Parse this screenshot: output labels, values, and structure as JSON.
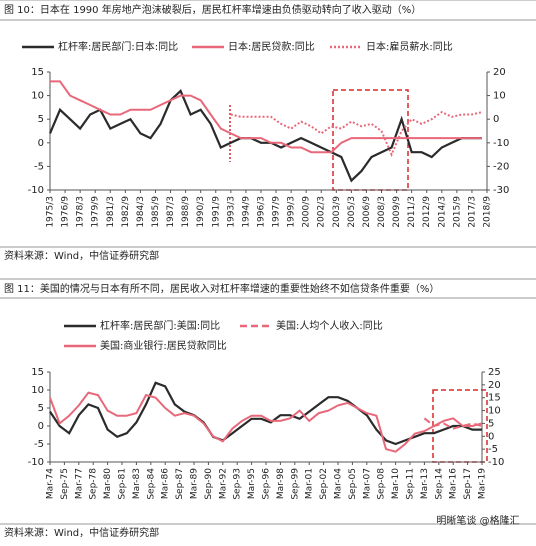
{
  "charts": [
    {
      "chart_data": {
        "type": "line",
        "title": "图 10：日本在 1990 年房地产泡沫破裂后，居民杠杆率增速由负债驱动转向了收入驱动（%）",
        "source": "资料来源：Wind，中信证券研究部",
        "x": [
          1975.25,
          1976.25,
          1977.25,
          1978.25,
          1979.25,
          1980.25,
          1981.25,
          1982.25,
          1983.25,
          1984.25,
          1985.25,
          1986.25,
          1987.25,
          1988.25,
          1989.25,
          1990.25,
          1991.25,
          1992.25,
          1993.25,
          1994.25,
          1995.25,
          1996.25,
          1997.25,
          1998.25,
          1999.25,
          2000.25,
          2001.25,
          2002.25,
          2003.25,
          2004.25,
          2005.25,
          2006.25,
          2007.25,
          2008.25,
          2009.25,
          2010.25,
          2011.25,
          2012.25,
          2013.25,
          2014.25,
          2015.25,
          2016.25,
          2017.25,
          2018.25
        ],
        "series": [
          {
            "name": "杠杆率:居民部门:日本:同比",
            "color": "#2b2b2b",
            "dash": "solid",
            "values": [
              2,
              7,
              5,
              3,
              6,
              7,
              3,
              4,
              5,
              2,
              1,
              4,
              9,
              11,
              6,
              7,
              4,
              -1,
              0,
              1,
              1,
              0,
              0,
              -1,
              0,
              1,
              0,
              -1,
              -2,
              -3,
              -8,
              -6,
              -3,
              -2,
              -1,
              5,
              -2,
              -2,
              -3,
              -1,
              0,
              1,
              1,
              1
            ]
          },
          {
            "name": "日本:居民贷款:同比",
            "color": "#e8687a",
            "dash": "solid",
            "values": [
              13,
              13,
              10,
              9,
              8,
              7,
              6,
              6,
              7,
              7,
              7,
              8,
              9,
              10,
              10,
              9,
              6,
              3,
              2,
              1,
              1,
              1,
              0,
              0,
              -1,
              -1,
              -2,
              -2,
              -2,
              0,
              1,
              1,
              1,
              1,
              1,
              1,
              1,
              1,
              1,
              1,
              1,
              1,
              1,
              1
            ]
          },
          {
            "name": "日本:雇员薪水:同比",
            "color": "#e8687a",
            "dash": "dotted",
            "axis": "y2",
            "values": [
              null,
              null,
              null,
              null,
              null,
              null,
              null,
              null,
              null,
              null,
              null,
              null,
              null,
              null,
              null,
              null,
              null,
              null,
              2,
              1,
              1,
              1,
              1,
              -2,
              -4,
              -1,
              -3,
              -6,
              -3,
              -4,
              -1,
              -3,
              -2,
              -5,
              -15,
              -5,
              0,
              -2,
              0,
              3,
              1,
              2,
              2,
              3
            ]
          }
        ],
        "xlim": [
          1975.25,
          2018.75
        ],
        "xticks": [
          {
            "value": 1975.25,
            "label": "1975/3"
          },
          {
            "value": 1976.75,
            "label": "1976/9"
          },
          {
            "value": 1978.25,
            "label": "1978/3"
          },
          {
            "value": 1979.75,
            "label": "1979/9"
          },
          {
            "value": 1981.25,
            "label": "1981/3"
          },
          {
            "value": 1982.75,
            "label": "1982/9"
          },
          {
            "value": 1984.25,
            "label": "1984/3"
          },
          {
            "value": 1985.75,
            "label": "1985/9"
          },
          {
            "value": 1987.25,
            "label": "1987/3"
          },
          {
            "value": 1988.75,
            "label": "1988/9"
          },
          {
            "value": 1990.25,
            "label": "1990/3"
          },
          {
            "value": 1991.75,
            "label": "1991/9"
          },
          {
            "value": 1993.25,
            "label": "1993/3"
          },
          {
            "value": 1994.75,
            "label": "1994/9"
          },
          {
            "value": 1996.25,
            "label": "1996/3"
          },
          {
            "value": 1997.75,
            "label": "1997/9"
          },
          {
            "value": 1999.25,
            "label": "1999/3"
          },
          {
            "value": 2000.75,
            "label": "2000/9"
          },
          {
            "value": 2002.25,
            "label": "2002/3"
          },
          {
            "value": 2003.75,
            "label": "2003/9"
          },
          {
            "value": 2005.25,
            "label": "2005/3"
          },
          {
            "value": 2006.75,
            "label": "2006/9"
          },
          {
            "value": 2008.25,
            "label": "2008/3"
          },
          {
            "value": 2009.75,
            "label": "2009/9"
          },
          {
            "value": 2011.25,
            "label": "2011/3"
          },
          {
            "value": 2012.75,
            "label": "2012/9"
          },
          {
            "value": 2014.25,
            "label": "2014/3"
          },
          {
            "value": 2015.75,
            "label": "2015/9"
          },
          {
            "value": 2017.25,
            "label": "2017/3"
          },
          {
            "value": 2018.75,
            "label": "2018/9"
          }
        ],
        "ylim": [
          -10,
          15
        ],
        "yticks": [
          -10,
          -5,
          0,
          5,
          10,
          15
        ],
        "y2lim": [
          -30,
          20
        ],
        "y2ticks": [
          -30,
          -20,
          -10,
          0,
          10,
          20
        ]
      }
    },
    {
      "chart_data": {
        "type": "line",
        "title": "图 11：美国的情况与日本有所不同，居民收入对杠杆率增速的重要性始终不如信贷条件重要（%）",
        "source": "资料来源：Wind，中信证券研究部",
        "watermark": "明晰笔谈 @格隆汇",
        "x": [
          1974.25,
          1975.25,
          1976.25,
          1977.25,
          1978.25,
          1979.25,
          1980.25,
          1981.25,
          1982.25,
          1983.25,
          1984.25,
          1985.25,
          1986.25,
          1987.25,
          1988.25,
          1989.25,
          1990.25,
          1991.25,
          1992.25,
          1993.25,
          1994.25,
          1995.25,
          1996.25,
          1997.25,
          1998.25,
          1999.25,
          2000.25,
          2001.25,
          2002.25,
          2003.25,
          2004.25,
          2005.25,
          2006.25,
          2007.25,
          2008.25,
          2009.25,
          2010.25,
          2011.25,
          2012.25,
          2013.25,
          2014.25,
          2015.25,
          2016.25,
          2017.25,
          2018.25,
          2019.25
        ],
        "series": [
          {
            "name": "杠杆率:居民部门:美国:同比",
            "color": "#2b2b2b",
            "dash": "solid",
            "values": [
              4,
              0,
              -2,
              3,
              6,
              5,
              -1,
              -3,
              -2,
              1,
              6,
              12,
              11,
              6,
              4,
              3,
              1,
              -3,
              -4,
              -2,
              0,
              2,
              2,
              1,
              3,
              3,
              2,
              4,
              6,
              8,
              8,
              7,
              5,
              3,
              -1,
              -4,
              -5,
              -4,
              -3,
              -2,
              -2,
              -1,
              0,
              0,
              -1,
              -1
            ]
          },
          {
            "name": "美国:人均个人收入:同比",
            "color": "#e8687a",
            "dash": "dashed",
            "axis": "y2",
            "values": [
              null,
              null,
              null,
              null,
              null,
              null,
              null,
              null,
              null,
              null,
              null,
              null,
              null,
              null,
              null,
              null,
              null,
              null,
              null,
              null,
              null,
              null,
              null,
              null,
              null,
              null,
              null,
              null,
              null,
              null,
              null,
              null,
              null,
              null,
              null,
              null,
              null,
              null,
              null,
              7,
              4,
              5,
              3,
              4,
              5,
              4
            ]
          },
          {
            "name": "美国:商业银行:居民贷款同比",
            "color": "#e8687a",
            "dash": "solid",
            "axis": "y2",
            "values": [
              15,
              5,
              8,
              12,
              17,
              16,
              10,
              8,
              8,
              9,
              16,
              15,
              11,
              8,
              9,
              8,
              5,
              0,
              -2,
              3,
              6,
              8,
              8,
              6,
              6,
              7,
              10,
              6,
              9,
              10,
              12,
              13,
              11,
              9,
              8,
              -5,
              -6,
              -3,
              1,
              2,
              4,
              6,
              7,
              4,
              4,
              5
            ]
          }
        ],
        "xlim": [
          1974.25,
          2019.25
        ],
        "xticks": [
          {
            "value": 1974.25,
            "label": "Mar-74"
          },
          {
            "value": 1975.75,
            "label": "Sep-75"
          },
          {
            "value": 1977.25,
            "label": "Mar-77"
          },
          {
            "value": 1978.75,
            "label": "Sep-78"
          },
          {
            "value": 1980.25,
            "label": "Mar-80"
          },
          {
            "value": 1981.75,
            "label": "Sep-81"
          },
          {
            "value": 1983.25,
            "label": "Mar-83"
          },
          {
            "value": 1984.75,
            "label": "Sep-84"
          },
          {
            "value": 1986.25,
            "label": "Mar-86"
          },
          {
            "value": 1987.75,
            "label": "Sep-87"
          },
          {
            "value": 1989.25,
            "label": "Mar-89"
          },
          {
            "value": 1990.75,
            "label": "Sep-90"
          },
          {
            "value": 1992.25,
            "label": "Mar-92"
          },
          {
            "value": 1993.75,
            "label": "Sep-93"
          },
          {
            "value": 1995.25,
            "label": "Mar-95"
          },
          {
            "value": 1996.75,
            "label": "Sep-96"
          },
          {
            "value": 1998.25,
            "label": "Mar-98"
          },
          {
            "value": 1999.75,
            "label": "Sep-99"
          },
          {
            "value": 2001.25,
            "label": "Mar-01"
          },
          {
            "value": 2002.75,
            "label": "Sep-02"
          },
          {
            "value": 2004.25,
            "label": "Mar-04"
          },
          {
            "value": 2005.75,
            "label": "Sep-05"
          },
          {
            "value": 2007.25,
            "label": "Mar-07"
          },
          {
            "value": 2008.75,
            "label": "Sep-08"
          },
          {
            "value": 2010.25,
            "label": "Mar-10"
          },
          {
            "value": 2011.75,
            "label": "Sep-11"
          },
          {
            "value": 2013.25,
            "label": "Mar-13"
          },
          {
            "value": 2014.75,
            "label": "Sep-14"
          },
          {
            "value": 2016.25,
            "label": "Mar-16"
          },
          {
            "value": 2017.75,
            "label": "Sep-17"
          },
          {
            "value": 2019.25,
            "label": "Mar-19"
          }
        ],
        "ylim": [
          -10,
          15
        ],
        "yticks": [
          -10,
          -5,
          0,
          5,
          10,
          15
        ],
        "y2lim": [
          -10,
          25
        ],
        "y2ticks": [
          -10,
          -5,
          0,
          5,
          10,
          15,
          20,
          25
        ]
      }
    }
  ]
}
